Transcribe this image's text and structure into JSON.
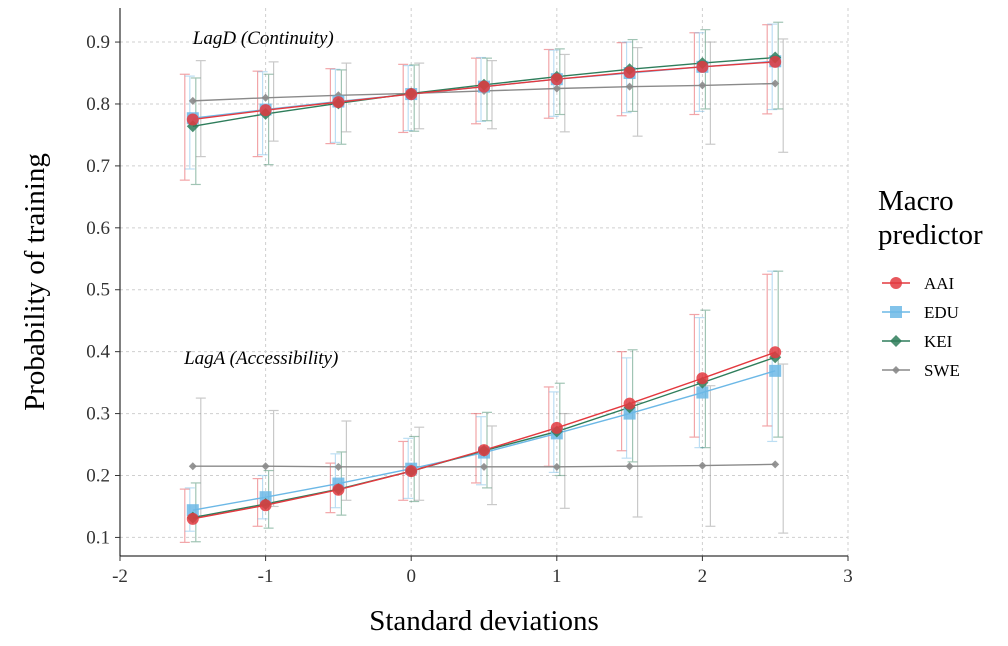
{
  "chart_data": {
    "type": "line",
    "x": [
      -1.5,
      -1,
      -0.5,
      0,
      0.5,
      1,
      1.5,
      2,
      2.5
    ],
    "xlabel": "Standard deviations",
    "ylabel": "Probability of training",
    "xlim": [
      -2,
      3
    ],
    "ylim": [
      0.07,
      0.955
    ],
    "xticks": [
      -2,
      -1,
      0,
      1,
      2,
      3
    ],
    "xtick_labels": [
      "-2",
      "-1",
      "0",
      "1",
      "2",
      "3"
    ],
    "yticks": [
      0.1,
      0.2,
      0.3,
      0.4,
      0.5,
      0.6,
      0.7,
      0.8,
      0.9
    ],
    "ytick_labels": [
      "0.1",
      "0.2",
      "0.3",
      "0.4",
      "0.5",
      "0.6",
      "0.7",
      "0.8",
      "0.9"
    ],
    "grid": true,
    "legend_title": "Macro\npredictor",
    "legend_position": "right",
    "annotations": [
      {
        "text": "LagD (Continuity)",
        "x": -1.5,
        "y": 0.897
      },
      {
        "text": "LagA (Accessibility)",
        "x": -1.56,
        "y": 0.38
      }
    ],
    "series": [
      {
        "name": "AAI",
        "group": "LagD",
        "color": "#e3393f",
        "marker": "circle",
        "values": [
          0.775,
          0.79,
          0.803,
          0.816,
          0.828,
          0.84,
          0.851,
          0.86,
          0.868
        ],
        "lower": [
          0.677,
          0.715,
          0.736,
          0.754,
          0.768,
          0.777,
          0.781,
          0.783,
          0.784
        ],
        "upper": [
          0.848,
          0.853,
          0.857,
          0.864,
          0.874,
          0.888,
          0.899,
          0.915,
          0.928
        ]
      },
      {
        "name": "EDU",
        "group": "LagD",
        "color": "#6cb8e6",
        "marker": "square",
        "values": [
          0.777,
          0.791,
          0.804,
          0.816,
          0.828,
          0.84,
          0.85,
          0.86,
          0.869
        ],
        "lower": [
          0.695,
          0.718,
          0.738,
          0.757,
          0.772,
          0.78,
          0.786,
          0.788,
          0.791
        ],
        "upper": [
          0.845,
          0.852,
          0.856,
          0.862,
          0.875,
          0.887,
          0.9,
          0.915,
          0.929
        ]
      },
      {
        "name": "KEI",
        "group": "LagD",
        "color": "#2e7d5b",
        "marker": "diamond",
        "values": [
          0.764,
          0.784,
          0.801,
          0.817,
          0.831,
          0.844,
          0.856,
          0.866,
          0.875
        ],
        "lower": [
          0.67,
          0.702,
          0.735,
          0.756,
          0.773,
          0.783,
          0.788,
          0.792,
          0.792
        ],
        "upper": [
          0.842,
          0.848,
          0.855,
          0.863,
          0.874,
          0.889,
          0.904,
          0.92,
          0.932
        ]
      },
      {
        "name": "SWE",
        "group": "LagD",
        "color": "#8a8a8a",
        "marker": "small-diamond",
        "values": [
          0.805,
          0.81,
          0.814,
          0.817,
          0.821,
          0.825,
          0.828,
          0.83,
          0.833
        ],
        "lower": [
          0.715,
          0.74,
          0.755,
          0.76,
          0.76,
          0.755,
          0.748,
          0.735,
          0.722
        ],
        "upper": [
          0.87,
          0.868,
          0.866,
          0.866,
          0.87,
          0.88,
          0.891,
          0.9,
          0.905
        ]
      },
      {
        "name": "AAI",
        "group": "LagA",
        "color": "#e3393f",
        "marker": "circle",
        "values": [
          0.13,
          0.152,
          0.177,
          0.207,
          0.241,
          0.277,
          0.316,
          0.357,
          0.399
        ],
        "lower": [
          0.092,
          0.118,
          0.14,
          0.16,
          0.188,
          0.215,
          0.24,
          0.262,
          0.28
        ],
        "upper": [
          0.178,
          0.195,
          0.22,
          0.255,
          0.3,
          0.343,
          0.4,
          0.46,
          0.525
        ]
      },
      {
        "name": "EDU",
        "group": "LagA",
        "color": "#6cb8e6",
        "marker": "square",
        "values": [
          0.144,
          0.165,
          0.187,
          0.211,
          0.237,
          0.268,
          0.3,
          0.334,
          0.369
        ],
        "lower": [
          0.11,
          0.13,
          0.148,
          0.163,
          0.185,
          0.205,
          0.228,
          0.245,
          0.255
        ],
        "upper": [
          0.18,
          0.2,
          0.235,
          0.26,
          0.295,
          0.335,
          0.39,
          0.455,
          0.53
        ]
      },
      {
        "name": "KEI",
        "group": "LagA",
        "color": "#2e7d5b",
        "marker": "diamond",
        "values": [
          0.132,
          0.154,
          0.178,
          0.207,
          0.24,
          0.271,
          0.31,
          0.35,
          0.391
        ],
        "lower": [
          0.093,
          0.115,
          0.136,
          0.158,
          0.18,
          0.2,
          0.222,
          0.245,
          0.262
        ],
        "upper": [
          0.188,
          0.208,
          0.238,
          0.263,
          0.302,
          0.349,
          0.403,
          0.467,
          0.53
        ]
      },
      {
        "name": "SWE",
        "group": "LagA",
        "color": "#8a8a8a",
        "marker": "small-diamond",
        "values": [
          0.215,
          0.215,
          0.214,
          0.214,
          0.214,
          0.214,
          0.215,
          0.216,
          0.218
        ],
        "lower": [
          0.135,
          0.15,
          0.16,
          0.16,
          0.153,
          0.147,
          0.133,
          0.118,
          0.107
        ],
        "upper": [
          0.325,
          0.305,
          0.288,
          0.278,
          0.28,
          0.3,
          0.318,
          0.345,
          0.38
        ]
      }
    ],
    "legend": [
      {
        "label": "AAI",
        "color": "#e3393f",
        "marker": "circle"
      },
      {
        "label": "EDU",
        "color": "#6cb8e6",
        "marker": "square"
      },
      {
        "label": "KEI",
        "color": "#2e7d5b",
        "marker": "diamond"
      },
      {
        "label": "SWE",
        "color": "#8a8a8a",
        "marker": "small-diamond"
      }
    ]
  }
}
